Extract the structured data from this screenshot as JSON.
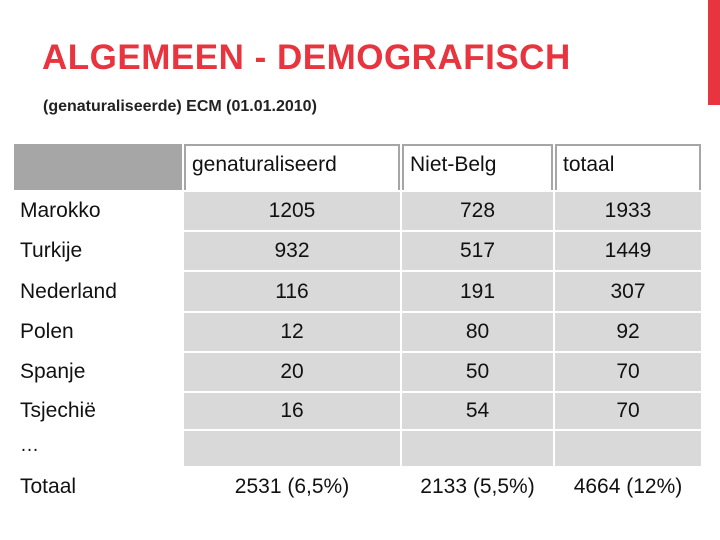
{
  "slide": {
    "title": "ALGEMEEN - DEMOGRAFISCH",
    "subtitle": "(genaturaliseerde) ECM (01.01.2010)"
  },
  "table": {
    "headers": [
      "",
      "genaturaliseerd",
      "Niet-Belg",
      "totaal"
    ],
    "rows": [
      [
        "Marokko",
        "1205",
        "728",
        "1933"
      ],
      [
        "Turkije",
        "932",
        "517",
        "1449"
      ],
      [
        "Nederland",
        "116",
        "191",
        "307"
      ],
      [
        "Polen",
        "12",
        "80",
        "92"
      ],
      [
        "Spanje",
        "20",
        "50",
        "70"
      ],
      [
        "Tsjechië",
        "16",
        "54",
        "70"
      ],
      [
        "…",
        "",
        "",
        ""
      ],
      [
        "Totaal",
        "2531 (6,5%)",
        "2133 (5,5%)",
        "4664 (12%)"
      ]
    ]
  },
  "colors": {
    "accent": "#e8343f",
    "header_fill": "#a6a6a6",
    "row_fill": "#d9d9d9"
  }
}
